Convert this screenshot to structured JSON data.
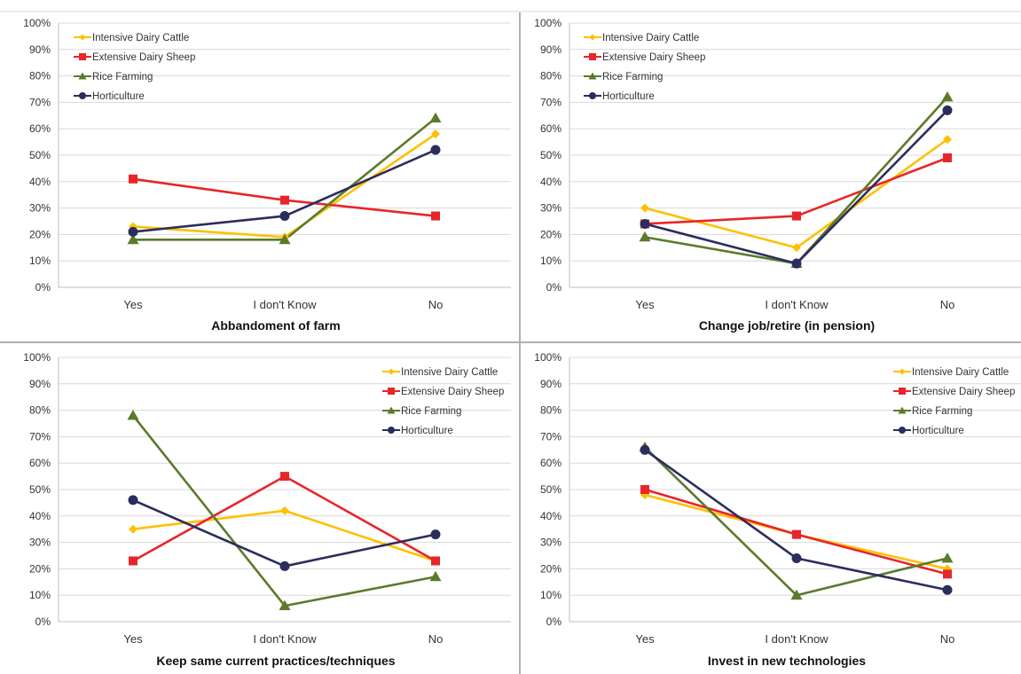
{
  "chart_data": [
    {
      "type": "line",
      "title": "Abbandoment of farm",
      "categories": [
        "Yes",
        "I don't Know",
        "No"
      ],
      "yticks": [
        "0%",
        "10%",
        "20%",
        "30%",
        "40%",
        "50%",
        "60%",
        "70%",
        "80%",
        "90%",
        "100%"
      ],
      "ylim": [
        0,
        100
      ],
      "legend_position": "top-left",
      "series": [
        {
          "name": "Intensive Dairy Cattle",
          "values": [
            23,
            19,
            58
          ],
          "color": "#FFC000",
          "marker": "diamond"
        },
        {
          "name": "Extensive Dairy Sheep",
          "values": [
            41,
            33,
            27
          ],
          "color": "#E8252A",
          "marker": "square"
        },
        {
          "name": "Rice Farming",
          "values": [
            18,
            18,
            64
          ],
          "color": "#5B7A2B",
          "marker": "triangle"
        },
        {
          "name": "Horticulture",
          "values": [
            21,
            27,
            52
          ],
          "color": "#2B2D5C",
          "marker": "circle"
        }
      ]
    },
    {
      "type": "line",
      "title": "Change job/retire (in pension)",
      "categories": [
        "Yes",
        "I don't Know",
        "No"
      ],
      "yticks": [
        "0%",
        "10%",
        "20%",
        "30%",
        "40%",
        "50%",
        "60%",
        "70%",
        "80%",
        "90%",
        "100%"
      ],
      "ylim": [
        0,
        100
      ],
      "legend_position": "top-left",
      "series": [
        {
          "name": "Intensive Dairy Cattle",
          "values": [
            30,
            15,
            56
          ],
          "color": "#FFC000",
          "marker": "diamond"
        },
        {
          "name": "Extensive Dairy Sheep",
          "values": [
            24,
            27,
            49
          ],
          "color": "#E8252A",
          "marker": "square"
        },
        {
          "name": "Rice Farming",
          "values": [
            19,
            9,
            72
          ],
          "color": "#5B7A2B",
          "marker": "triangle"
        },
        {
          "name": "Horticulture",
          "values": [
            24,
            9,
            67
          ],
          "color": "#2B2D5C",
          "marker": "circle"
        }
      ]
    },
    {
      "type": "line",
      "title": "Keep same current practices/techniques",
      "categories": [
        "Yes",
        "I don't Know",
        "No"
      ],
      "yticks": [
        "0%",
        "10%",
        "20%",
        "30%",
        "40%",
        "50%",
        "60%",
        "70%",
        "80%",
        "90%",
        "100%"
      ],
      "ylim": [
        0,
        100
      ],
      "legend_position": "top-right",
      "series": [
        {
          "name": "Intensive Dairy Cattle",
          "values": [
            35,
            42,
            23
          ],
          "color": "#FFC000",
          "marker": "diamond"
        },
        {
          "name": "Extensive Dairy Sheep",
          "values": [
            23,
            55,
            23
          ],
          "color": "#E8252A",
          "marker": "square"
        },
        {
          "name": "Rice Farming",
          "values": [
            78,
            6,
            17
          ],
          "color": "#5B7A2B",
          "marker": "triangle"
        },
        {
          "name": "Horticulture",
          "values": [
            46,
            21,
            33
          ],
          "color": "#2B2D5C",
          "marker": "circle"
        }
      ]
    },
    {
      "type": "line",
      "title": "Invest in new technologies",
      "categories": [
        "Yes",
        "I don't Know",
        "No"
      ],
      "yticks": [
        "0%",
        "10%",
        "20%",
        "30%",
        "40%",
        "50%",
        "60%",
        "70%",
        "80%",
        "90%",
        "100%"
      ],
      "ylim": [
        0,
        100
      ],
      "legend_position": "top-right",
      "series": [
        {
          "name": "Intensive Dairy Cattle",
          "values": [
            48,
            33,
            20
          ],
          "color": "#FFC000",
          "marker": "diamond"
        },
        {
          "name": "Extensive Dairy Sheep",
          "values": [
            50,
            33,
            18
          ],
          "color": "#E8252A",
          "marker": "square"
        },
        {
          "name": "Rice Farming",
          "values": [
            66,
            10,
            24
          ],
          "color": "#5B7A2B",
          "marker": "triangle"
        },
        {
          "name": "Horticulture",
          "values": [
            65,
            24,
            12
          ],
          "color": "#2B2D5C",
          "marker": "circle"
        }
      ]
    }
  ]
}
